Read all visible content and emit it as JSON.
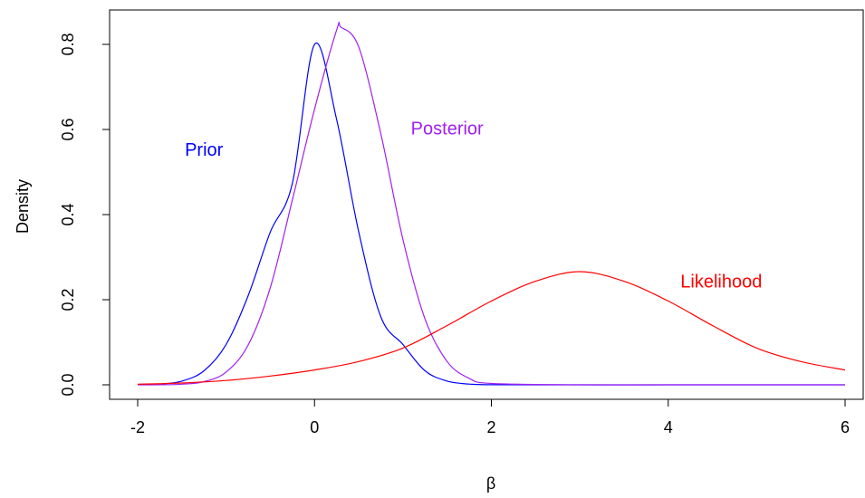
{
  "chart_data": {
    "type": "line",
    "title": "",
    "xlabel": "β",
    "ylabel": "Density",
    "xlim": [
      -2,
      6
    ],
    "ylim": [
      0,
      0.84
    ],
    "xticks": [
      -2,
      0,
      2,
      4,
      6
    ],
    "xtick_labels": [
      "-2",
      "0",
      "2",
      "4",
      "6"
    ],
    "yticks": [
      0.0,
      0.2,
      0.4,
      0.6,
      0.8
    ],
    "ytick_labels": [
      "0.0",
      "0.2",
      "0.4",
      "0.6",
      "0.8"
    ],
    "grid": false,
    "series": [
      {
        "name": "Prior",
        "color": "#0000ff",
        "label_anchor": {
          "x": -1.25,
          "y": 0.55
        },
        "x": [
          -2.0,
          -1.75,
          -1.5,
          -1.25,
          -1.0,
          -0.75,
          -0.5,
          -0.25,
          0.0,
          0.25,
          0.5,
          0.75,
          1.0,
          1.25,
          1.5,
          1.75,
          2.0,
          3.0,
          4.0,
          5.0,
          6.0
        ],
        "y": [
          0.0003,
          0.0018,
          0.0088,
          0.0329,
          0.0946,
          0.2095,
          0.3589,
          0.4737,
          0.8,
          0.6231,
          0.3589,
          0.1596,
          0.0946,
          0.0329,
          0.0088,
          0.0018,
          0.0003,
          0.0,
          0.0,
          0.0,
          0.0
        ]
      },
      {
        "name": "Posterior",
        "color": "#a020f0",
        "label_anchor": {
          "x": 1.5,
          "y": 0.6
        },
        "x": [
          -2.0,
          -1.75,
          -1.5,
          -1.25,
          -1.0,
          -0.75,
          -0.5,
          -0.25,
          0.0,
          0.25,
          0.3,
          0.5,
          0.75,
          1.0,
          1.25,
          1.5,
          1.75,
          2.0,
          3.0,
          4.0,
          5.0,
          6.0
        ],
        "y": [
          0.0,
          0.0002,
          0.0014,
          0.0074,
          0.0299,
          0.0936,
          0.2283,
          0.4347,
          0.6478,
          0.8339,
          0.84,
          0.7938,
          0.5895,
          0.3413,
          0.1545,
          0.0546,
          0.015,
          0.0032,
          0.0,
          0.0,
          0.0,
          0.0
        ]
      },
      {
        "name": "Likelihood",
        "color": "#ff0000",
        "label_anchor": {
          "x": 4.6,
          "y": 0.24
        },
        "x": [
          -2.0,
          -1.5,
          -1.0,
          -0.5,
          0.0,
          0.5,
          1.0,
          1.5,
          2.0,
          2.5,
          3.0,
          3.5,
          4.0,
          4.5,
          5.0,
          5.5,
          6.0
        ],
        "y": [
          0.0014,
          0.0042,
          0.0102,
          0.0206,
          0.035,
          0.0546,
          0.0864,
          0.1393,
          0.1969,
          0.2433,
          0.266,
          0.2433,
          0.1969,
          0.1393,
          0.0864,
          0.0546,
          0.035
        ]
      }
    ]
  }
}
